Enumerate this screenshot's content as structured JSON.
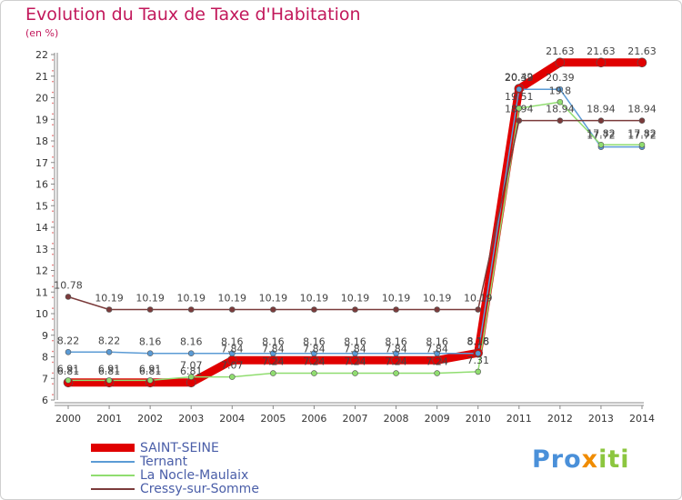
{
  "chart_data": {
    "type": "line",
    "title": "Evolution du Taux de Taxe d'Habitation",
    "subtitle": "(en %)",
    "x": [
      "2000",
      "2001",
      "2002",
      "2003",
      "2004",
      "2005",
      "2006",
      "2007",
      "2008",
      "2009",
      "2010",
      "2011",
      "2012",
      "2013",
      "2014"
    ],
    "ylim": [
      6,
      22
    ],
    "yticks": [
      6,
      7,
      8,
      9,
      10,
      11,
      12,
      13,
      14,
      15,
      16,
      17,
      18,
      19,
      20,
      21,
      22
    ],
    "grid": false,
    "legend_position": "bottom-left",
    "series": [
      {
        "name": "SAINT-SEINE",
        "color": "#e00000",
        "width": 9,
        "values": [
          6.81,
          6.81,
          6.81,
          6.81,
          7.84,
          7.84,
          7.84,
          7.84,
          7.84,
          7.84,
          8.18,
          20.42,
          21.63,
          21.63,
          21.63
        ],
        "labels": [
          "6.81",
          "6.81",
          "6.81",
          "6.81",
          "7.84",
          "7.84",
          "7.84",
          "7.84",
          "7.84",
          "7.84",
          "8.18",
          "20.42",
          "21.63",
          "21.63",
          "21.63"
        ]
      },
      {
        "name": "Ternant",
        "color": "#5b9bd5",
        "width": 1.5,
        "values": [
          8.22,
          8.22,
          8.16,
          8.16,
          8.16,
          8.16,
          8.16,
          8.16,
          8.16,
          8.16,
          8.16,
          20.39,
          20.39,
          17.72,
          17.72
        ],
        "labels": [
          "8.22",
          "8.22",
          "8.16",
          "8.16",
          "8.16",
          "8.16",
          "8.16",
          "8.16",
          "8.16",
          "8.16",
          "8.16",
          "20.39",
          "20.39",
          "17.72",
          "17.72"
        ]
      },
      {
        "name": "La Nocle-Maulaix",
        "color": "#90dd70",
        "width": 1.5,
        "values": [
          6.91,
          6.91,
          6.91,
          7.07,
          7.07,
          7.24,
          7.24,
          7.24,
          7.24,
          7.24,
          7.31,
          19.51,
          19.8,
          17.82,
          17.82
        ],
        "labels": [
          "6.91",
          "6.91",
          "6.91",
          "7.07",
          "7.07",
          "7.24",
          "7.24",
          "7.24",
          "7.24",
          "7.24",
          "7.31",
          "19.51",
          "19.8",
          "17.82",
          "17.82"
        ]
      },
      {
        "name": "Cressy-sur-Somme",
        "color": "#7b3b3b",
        "width": 1.5,
        "values": [
          10.78,
          10.19,
          10.19,
          10.19,
          10.19,
          10.19,
          10.19,
          10.19,
          10.19,
          10.19,
          10.19,
          18.94,
          18.94,
          18.94,
          18.94
        ],
        "labels": [
          "10.78",
          "10.19",
          "10.19",
          "10.19",
          "10.19",
          "10.19",
          "10.19",
          "10.19",
          "10.19",
          "10.19",
          "10.19",
          "18.94",
          "18.94",
          "18.94",
          "18.94"
        ]
      }
    ]
  },
  "logo": {
    "p": "P",
    "ro": "ro",
    "x": "x",
    "iti": "iti"
  }
}
